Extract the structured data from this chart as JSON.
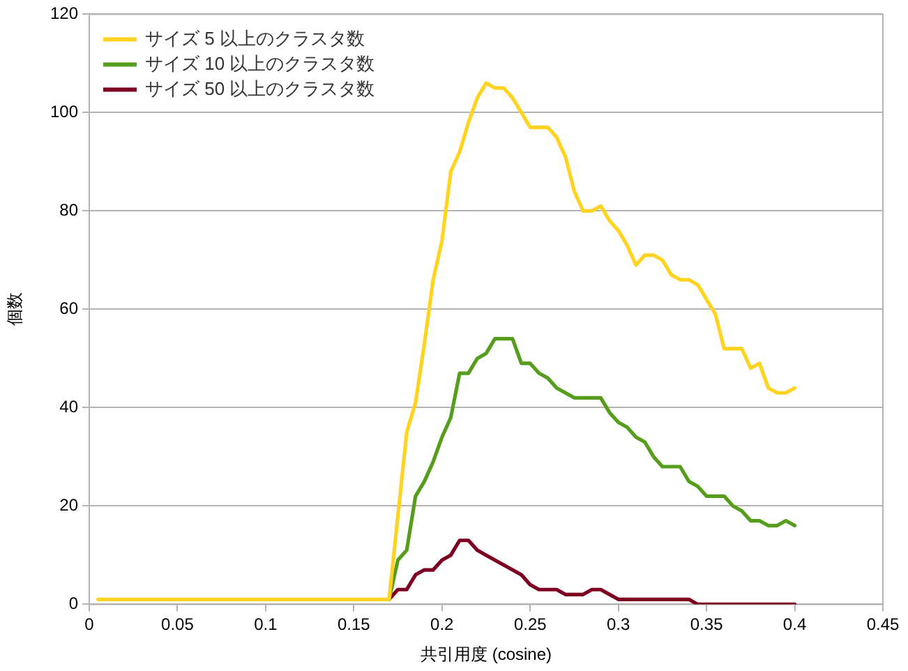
{
  "chart_data": {
    "type": "line",
    "xlabel": "共引用度 (cosine)",
    "ylabel": "個数",
    "x": [
      0.005,
      0.01,
      0.015,
      0.02,
      0.025,
      0.03,
      0.035,
      0.04,
      0.045,
      0.05,
      0.055,
      0.06,
      0.065,
      0.07,
      0.075,
      0.08,
      0.085,
      0.09,
      0.095,
      0.1,
      0.105,
      0.11,
      0.115,
      0.12,
      0.125,
      0.13,
      0.135,
      0.14,
      0.145,
      0.15,
      0.155,
      0.16,
      0.165,
      0.17,
      0.175,
      0.18,
      0.185,
      0.19,
      0.195,
      0.2,
      0.205,
      0.21,
      0.215,
      0.22,
      0.225,
      0.23,
      0.235,
      0.24,
      0.245,
      0.25,
      0.255,
      0.26,
      0.265,
      0.27,
      0.275,
      0.28,
      0.285,
      0.29,
      0.295,
      0.3,
      0.305,
      0.31,
      0.315,
      0.32,
      0.325,
      0.33,
      0.335,
      0.34,
      0.345,
      0.35,
      0.355,
      0.36,
      0.365,
      0.37,
      0.375,
      0.38,
      0.385,
      0.39,
      0.395,
      0.4
    ],
    "series": [
      {
        "name": "サイズ 5 以上のクラスタ数",
        "color": "#ffd320",
        "values": [
          1,
          1,
          1,
          1,
          1,
          1,
          1,
          1,
          1,
          1,
          1,
          1,
          1,
          1,
          1,
          1,
          1,
          1,
          1,
          1,
          1,
          1,
          1,
          1,
          1,
          1,
          1,
          1,
          1,
          1,
          1,
          1,
          1,
          1,
          18,
          35,
          41,
          53,
          66,
          74,
          88,
          92,
          98,
          103,
          106,
          105,
          105,
          103,
          100,
          97,
          97,
          97,
          95,
          91,
          84,
          80,
          80,
          81,
          78,
          76,
          73,
          69,
          71,
          71,
          70,
          67,
          66,
          66,
          65,
          62,
          59,
          52,
          52,
          52,
          48,
          49,
          44,
          43,
          43,
          44
        ]
      },
      {
        "name": "サイズ 10 以上のクラスタ数",
        "color": "#579d1c",
        "values": [
          null,
          null,
          null,
          null,
          null,
          null,
          null,
          null,
          null,
          null,
          null,
          null,
          null,
          null,
          null,
          null,
          null,
          null,
          null,
          null,
          null,
          null,
          null,
          null,
          null,
          null,
          null,
          null,
          null,
          null,
          null,
          null,
          null,
          1,
          9,
          11,
          22,
          25,
          29,
          34,
          38,
          47,
          47,
          50,
          51,
          54,
          54,
          54,
          49,
          49,
          47,
          46,
          44,
          43,
          42,
          42,
          42,
          42,
          39,
          37,
          36,
          34,
          33,
          30,
          28,
          28,
          28,
          25,
          24,
          22,
          22,
          22,
          20,
          19,
          17,
          17,
          16,
          16,
          17,
          16
        ]
      },
      {
        "name": "サイズ 50 以上のクラスタ数",
        "color": "#7e0021",
        "values": [
          null,
          null,
          null,
          null,
          null,
          null,
          null,
          null,
          null,
          null,
          null,
          null,
          null,
          null,
          null,
          null,
          null,
          null,
          null,
          null,
          null,
          null,
          null,
          null,
          null,
          null,
          null,
          null,
          null,
          null,
          null,
          null,
          null,
          1,
          3,
          3,
          6,
          7,
          7,
          9,
          10,
          13,
          13,
          11,
          10,
          9,
          8,
          7,
          6,
          4,
          3,
          3,
          3,
          2,
          2,
          2,
          3,
          3,
          2,
          1,
          1,
          1,
          1,
          1,
          1,
          1,
          1,
          1,
          0,
          0,
          0,
          0,
          0,
          0,
          0,
          0,
          0,
          0,
          0,
          0
        ]
      }
    ],
    "xlim": [
      0,
      0.45
    ],
    "xticks": [
      0,
      0.05,
      0.1,
      0.15,
      0.2,
      0.25,
      0.3,
      0.35,
      0.4,
      0.45
    ],
    "ylim": [
      0,
      120
    ],
    "yticks": [
      0,
      20,
      40,
      60,
      80,
      100,
      120
    ],
    "grid": "y",
    "legend": "top left",
    "marker": "none",
    "line_style": "solid"
  }
}
